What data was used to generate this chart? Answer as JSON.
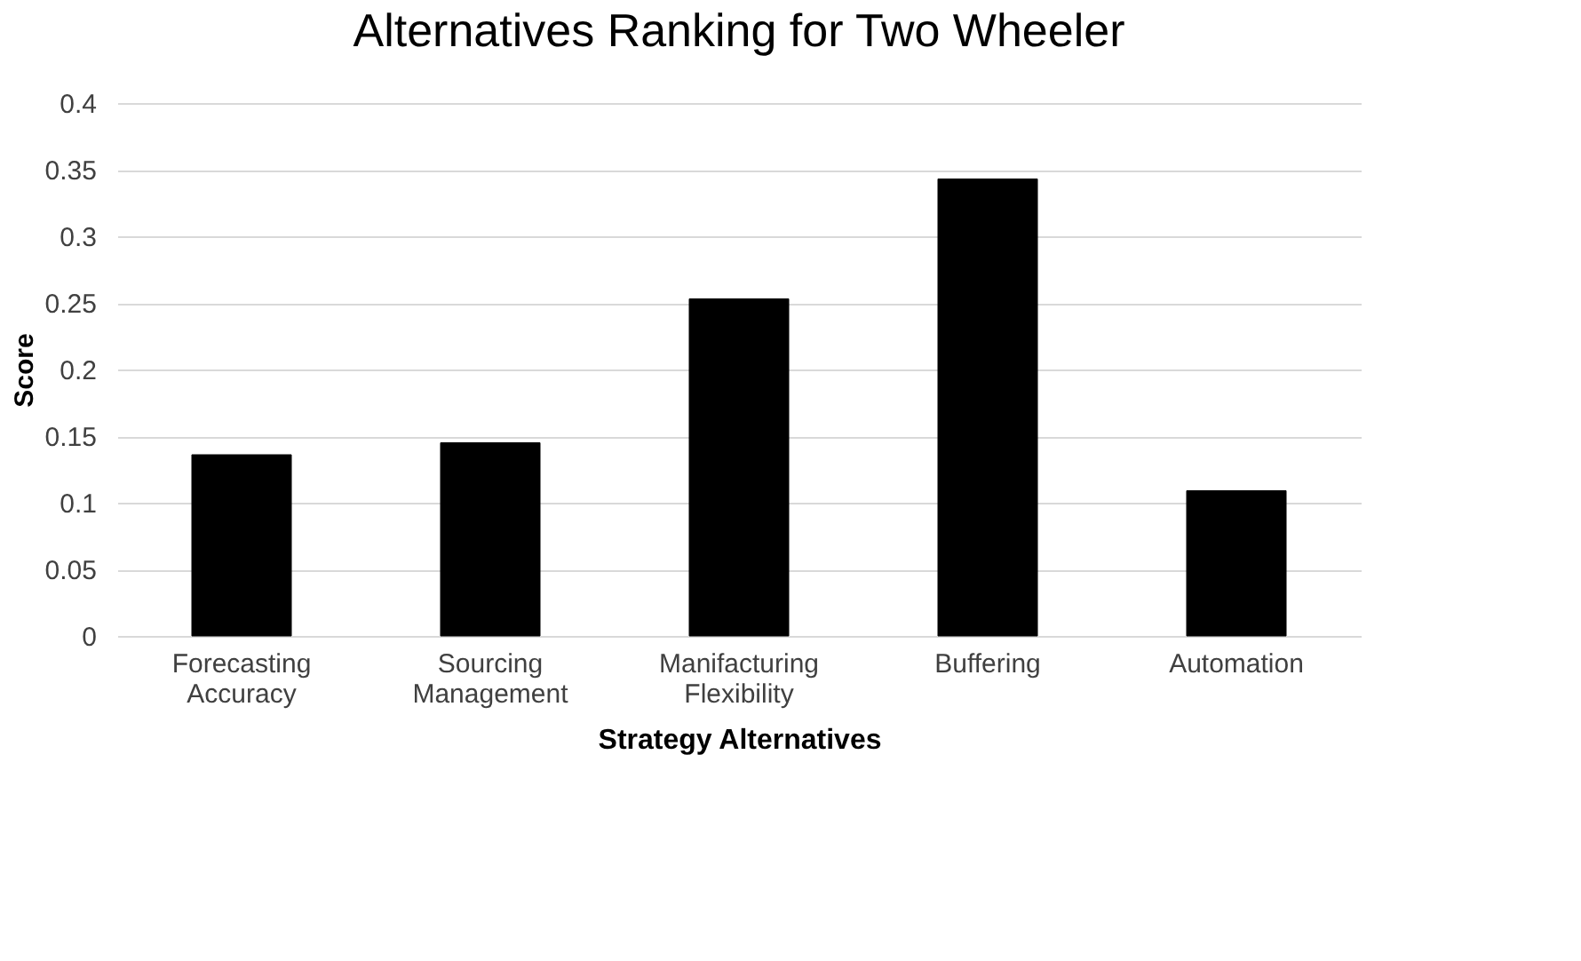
{
  "chart_data": {
    "type": "bar",
    "title": "Alternatives Ranking for Two Wheeler",
    "xlabel": "Strategy Alternatives",
    "ylabel": "Score",
    "categories": [
      "Forecasting Accuracy",
      "Sourcing Management",
      "Manifacturing Flexibility",
      "Buffering",
      "Automation"
    ],
    "values": [
      0.136,
      0.145,
      0.253,
      0.343,
      0.109
    ],
    "color": "#000000",
    "ylim": [
      0,
      0.4
    ],
    "yticks": [
      0,
      0.05,
      0.1,
      0.15,
      0.2,
      0.25,
      0.3,
      0.35,
      0.4
    ],
    "grid": "y"
  }
}
